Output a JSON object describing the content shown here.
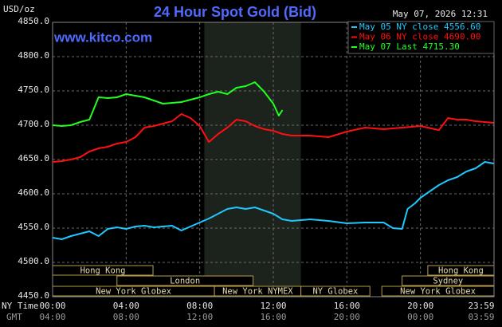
{
  "chart_data": {
    "type": "line",
    "title": "24 Hour Spot Gold (Bid)",
    "y_label": "USD/oz",
    "timestamp": "May 07, 2026 12:31",
    "watermark": "www.kitco.com",
    "row_labels": [
      "NY Time",
      "GMT"
    ],
    "xlim": [
      0,
      24
    ],
    "ylim": [
      4450,
      4850
    ],
    "yticks": [
      {
        "value": 4450,
        "label": "4450.0"
      },
      {
        "value": 4500,
        "label": "4500.0"
      },
      {
        "value": 4550,
        "label": "4550.0"
      },
      {
        "value": 4600,
        "label": "4600.0"
      },
      {
        "value": 4650,
        "label": "4650.0"
      },
      {
        "value": 4700,
        "label": "4700.0"
      },
      {
        "value": 4750,
        "label": "4750.0"
      },
      {
        "value": 4800,
        "label": "4800.0"
      },
      {
        "value": 4850,
        "label": "4850.0"
      }
    ],
    "xticks": [
      {
        "value": 0,
        "label": "00:00"
      },
      {
        "value": 4,
        "label": "04:00"
      },
      {
        "value": 8,
        "label": "08:00"
      },
      {
        "value": 12,
        "label": "12:00"
      },
      {
        "value": 16,
        "label": "16:00"
      },
      {
        "value": 20,
        "label": "20:00"
      },
      {
        "value": 23.983,
        "label": "23:59"
      }
    ],
    "x2ticks": [
      {
        "value": 0,
        "label": "04:00"
      },
      {
        "value": 4,
        "label": "08:00"
      },
      {
        "value": 8,
        "label": "12:00"
      },
      {
        "value": 12,
        "label": "16:00"
      },
      {
        "value": 16,
        "label": "20:00"
      },
      {
        "value": 20,
        "label": "00:00"
      },
      {
        "value": 23.983,
        "label": "03:59"
      }
    ],
    "grid": true,
    "highlight": [
      8.25,
      13.5
    ],
    "sessions": [
      [
        {
          "label": "Hong Kong",
          "start": 0,
          "end": 5.46
        },
        {
          "label": "Hong Kong",
          "start": 20.4,
          "end": 24
        }
      ],
      [
        {
          "label": "London",
          "start": 3.5,
          "end": 10.9
        },
        {
          "label": "Sydney",
          "start": 19,
          "end": 24
        }
      ],
      [
        {
          "label": "New York Globex",
          "start": 0,
          "end": 8.8
        },
        {
          "label": "New York NYMEX",
          "start": 8.8,
          "end": 13.5
        },
        {
          "label": "NY Globex",
          "start": 13.5,
          "end": 17.25
        },
        {
          "label": "New York Globex",
          "start": 17.9,
          "end": 24
        }
      ]
    ],
    "series": [
      {
        "name": "May 05 NY close 4556.60",
        "color": "#1ec8ff",
        "x": [
          0,
          0.5,
          1,
          1.5,
          2,
          2.5,
          3,
          3.5,
          4,
          4.5,
          5,
          5.5,
          6,
          6.5,
          7,
          7.5,
          8,
          8.5,
          9,
          9.5,
          10,
          10.5,
          11,
          11.5,
          12,
          12.5,
          13,
          13.5,
          14,
          15,
          16,
          17,
          18,
          18.5,
          19,
          19.3,
          19.7,
          20,
          20.5,
          21,
          21.5,
          22,
          22.5,
          23,
          23.5,
          23.98
        ],
        "values": [
          4536.0,
          4533.7,
          4538.4,
          4541.9,
          4545.3,
          4538.4,
          4548.8,
          4551.2,
          4548.8,
          4552.3,
          4553.5,
          4551.2,
          4552.3,
          4553.5,
          4546.5,
          4552.3,
          4558.1,
          4563.9,
          4570.9,
          4577.9,
          4580.2,
          4577.9,
          4580.2,
          4575.6,
          4570.9,
          4562.8,
          4560.5,
          4561.6,
          4562.8,
          4560.5,
          4557.0,
          4558.1,
          4558.1,
          4550.0,
          4548.8,
          4577.9,
          4586.0,
          4594.2,
          4603.5,
          4612.8,
          4619.8,
          4624.4,
          4632.6,
          4637.2,
          4646.5,
          4644.2
        ]
      },
      {
        "name": "May 06 NY close 4690.00",
        "color": "#ff1010",
        "x": [
          0,
          0.5,
          1,
          1.5,
          2,
          2.5,
          3,
          3.5,
          4,
          4.5,
          5,
          5.5,
          6,
          6.5,
          7,
          7.5,
          8,
          8.5,
          9,
          9.5,
          10,
          10.5,
          11,
          11.5,
          12,
          12.5,
          13,
          14,
          15,
          16,
          17,
          18,
          19,
          20,
          21,
          21.5,
          22,
          22.5,
          23,
          23.98
        ],
        "values": [
          4646.5,
          4647.7,
          4650.0,
          4653.5,
          4661.6,
          4666.3,
          4668.6,
          4673.3,
          4675.6,
          4682.6,
          4696.5,
          4698.8,
          4702.3,
          4705.8,
          4716.3,
          4710.5,
          4698.8,
          4675.6,
          4687.2,
          4696.5,
          4708.1,
          4705.8,
          4698.8,
          4694.2,
          4691.9,
          4687.2,
          4684.9,
          4684.9,
          4682.6,
          4690.7,
          4696.5,
          4694.2,
          4696.5,
          4698.8,
          4692.9,
          4710.5,
          4708.1,
          4708.1,
          4705.8,
          4703.5
        ]
      },
      {
        "name": "May 07 Last 4715.30",
        "color": "#20ff20",
        "x": [
          0,
          0.5,
          1,
          1.5,
          2,
          2.5,
          3,
          3.5,
          4,
          4.5,
          5,
          5.5,
          6,
          6.5,
          7,
          7.5,
          8,
          8.5,
          9,
          9.5,
          10,
          10.5,
          11,
          11.5,
          12,
          12.3,
          12.5
        ],
        "values": [
          4700.0,
          4698.8,
          4700.0,
          4704.7,
          4708.1,
          4740.7,
          4739.5,
          4740.7,
          4745.3,
          4743.0,
          4740.7,
          4736.0,
          4731.4,
          4732.6,
          4733.7,
          4737.2,
          4740.7,
          4745.3,
          4748.8,
          4745.3,
          4754.7,
          4757.0,
          4762.8,
          4748.8,
          4731.4,
          4714.0,
          4722.1
        ]
      }
    ]
  }
}
